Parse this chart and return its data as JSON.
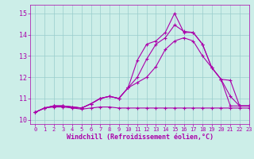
{
  "title": "",
  "xlabel": "Windchill (Refroidissement éolien,°C)",
  "ylabel": "",
  "xlim": [
    -0.5,
    23
  ],
  "ylim": [
    9.8,
    15.4
  ],
  "xticks": [
    0,
    1,
    2,
    3,
    4,
    5,
    6,
    7,
    8,
    9,
    10,
    11,
    12,
    13,
    14,
    15,
    16,
    17,
    18,
    19,
    20,
    21,
    22,
    23
  ],
  "yticks": [
    10,
    11,
    12,
    13,
    14,
    15
  ],
  "background_color": "#cceee8",
  "line_color": "#aa00aa",
  "grid_color": "#99cccc",
  "lines": [
    {
      "x": [
        0,
        1,
        2,
        3,
        4,
        5,
        6,
        7,
        8,
        9,
        10,
        11,
        12,
        13,
        14,
        15,
        16,
        17,
        18,
        19,
        20,
        21,
        22,
        23
      ],
      "y": [
        10.35,
        10.55,
        10.6,
        10.6,
        10.55,
        10.5,
        10.55,
        10.6,
        10.6,
        10.55,
        10.55,
        10.55,
        10.55,
        10.55,
        10.55,
        10.55,
        10.55,
        10.55,
        10.55,
        10.55,
        10.55,
        10.55,
        10.55,
        10.55
      ]
    },
    {
      "x": [
        0,
        1,
        2,
        3,
        4,
        5,
        6,
        7,
        8,
        9,
        10,
        11,
        12,
        13,
        14,
        15,
        16,
        17,
        18,
        19,
        20,
        21,
        22,
        23
      ],
      "y": [
        10.35,
        10.55,
        10.65,
        10.65,
        10.6,
        10.55,
        10.75,
        11.0,
        11.1,
        11.0,
        11.5,
        11.75,
        12.0,
        12.5,
        13.3,
        13.7,
        13.85,
        13.7,
        13.0,
        12.45,
        11.9,
        11.1,
        10.65,
        10.65
      ]
    },
    {
      "x": [
        0,
        1,
        2,
        3,
        4,
        5,
        6,
        7,
        8,
        9,
        10,
        11,
        12,
        13,
        14,
        15,
        16,
        17,
        18,
        19,
        20,
        21,
        22,
        23
      ],
      "y": [
        10.35,
        10.55,
        10.65,
        10.65,
        10.6,
        10.55,
        10.75,
        11.0,
        11.1,
        11.0,
        11.5,
        12.0,
        12.85,
        13.55,
        13.85,
        14.45,
        14.15,
        14.1,
        13.55,
        12.45,
        11.9,
        11.85,
        10.65,
        10.65
      ]
    },
    {
      "x": [
        0,
        1,
        2,
        3,
        4,
        5,
        6,
        7,
        8,
        9,
        10,
        11,
        12,
        13,
        14,
        15,
        16,
        17,
        18,
        19,
        20,
        21,
        22,
        23
      ],
      "y": [
        10.35,
        10.55,
        10.65,
        10.65,
        10.6,
        10.55,
        10.75,
        11.0,
        11.1,
        11.0,
        11.5,
        12.8,
        13.55,
        13.7,
        14.1,
        15.0,
        14.1,
        14.1,
        13.55,
        12.45,
        11.9,
        10.65,
        10.65,
        10.65
      ]
    }
  ],
  "figsize": [
    3.2,
    2.0
  ],
  "dpi": 100
}
